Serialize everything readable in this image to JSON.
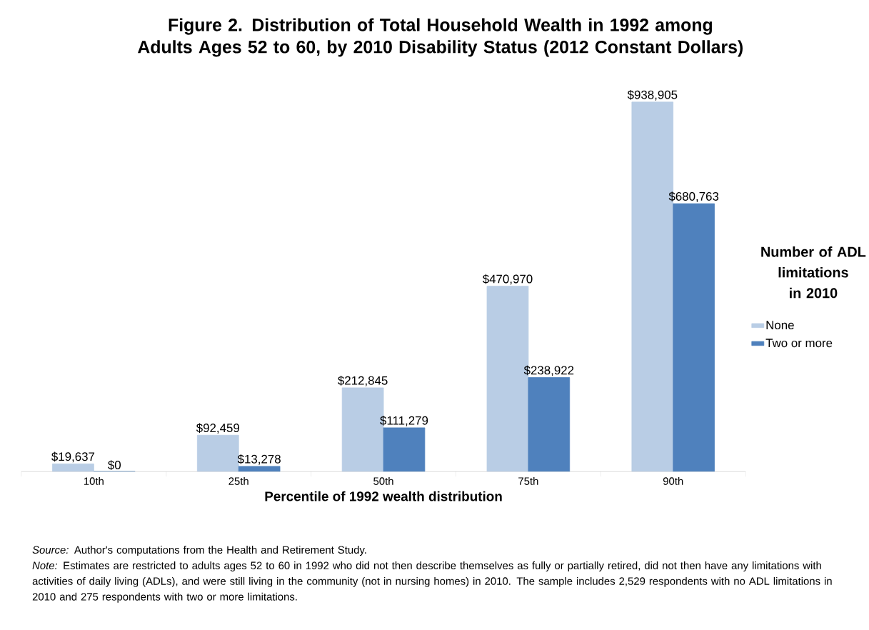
{
  "chart_data": {
    "type": "bar",
    "title": "Figure 2. Distribution of Total Household Wealth in 1992 among Adults Ages 52 to 60,  by 2010 Disability Status (2012 Constant Dollars)",
    "xlabel": "Percentile of 1992 wealth distribution",
    "legend_title": "Number of ADL limitations in 2010",
    "categories": [
      "10th",
      "25th",
      "50th",
      "75th",
      "90th"
    ],
    "series": [
      {
        "name": "None",
        "color": "#b9cde5",
        "values": [
          19637,
          92459,
          212845,
          470970,
          938905
        ],
        "value_labels": [
          "$19,637",
          "$92,459",
          "$212,845",
          "$470,970",
          "$938,905"
        ]
      },
      {
        "name": "Two or more",
        "color": "#4f81bd",
        "values": [
          0,
          13278,
          111279,
          238922,
          680763
        ],
        "value_labels": [
          "$0",
          "$13,278",
          "$111,279",
          "$238,922",
          "$680,763"
        ]
      }
    ],
    "tick_labels": "x",
    "legend": "right",
    "annotations": [
      "*Source:* Author's computations from the Health and Retirement Study.",
      "*Note:* Estimates are restricted to adults ages 52 to 60 in 1992 who did not then describe themselves as fully or partially retired, did not then have any limitations with activities of daily living (ADLs), and were still living in the community (not in nursing homes) in 2010.  The sample includes 2,529 respondents with no ADL limitations in 2010 and 275 respondents with two or more limitations."
    ]
  }
}
